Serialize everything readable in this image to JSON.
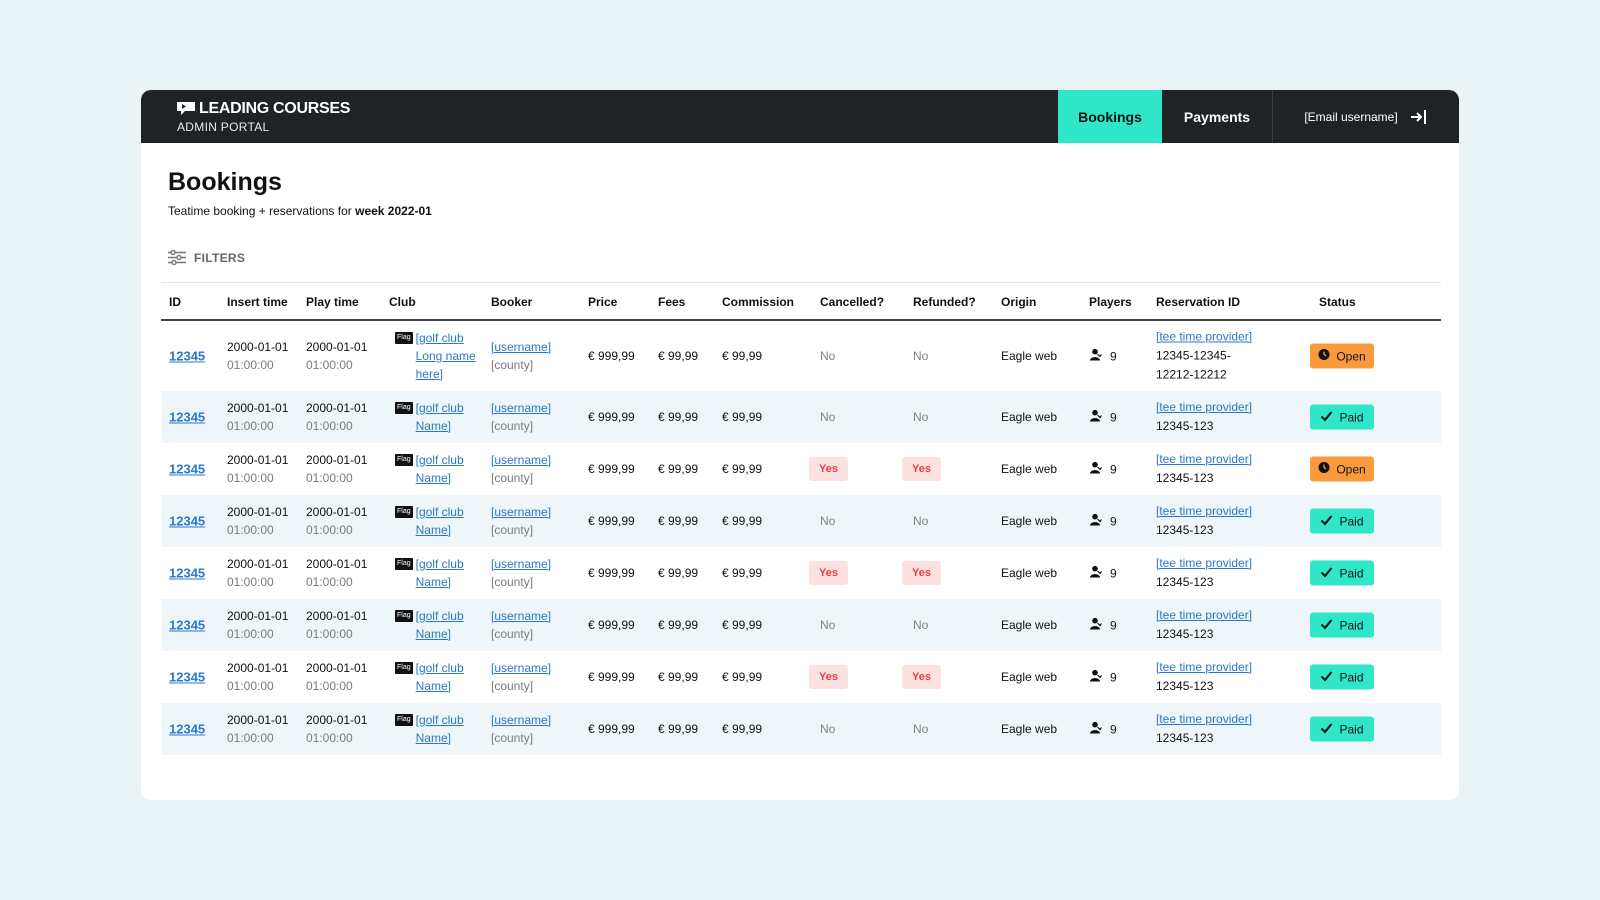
{
  "brand": {
    "name": "LEADING COURSES",
    "subtitle": "ADMIN PORTAL"
  },
  "nav": {
    "bookings": "Bookings",
    "payments": "Payments",
    "user": "[Email username]"
  },
  "page": {
    "title": "Bookings",
    "subtitle_prefix": "Teatime booking + reservations for ",
    "subtitle_week": "week 2022-01",
    "filters_label": "FILTERS"
  },
  "table": {
    "headers": [
      "ID",
      "Insert time",
      "Play time",
      "Club",
      "Booker",
      "Price",
      "Fees",
      "Commission",
      "Cancelled?",
      "Refunded?",
      "Origin",
      "Players",
      "Reservation ID",
      "Status"
    ],
    "rows": [
      {
        "id": "12345",
        "insert_date": "2000-01-01",
        "insert_time": "01:00:00",
        "play_date": "2000-01-01",
        "play_time": "01:00:00",
        "flag": "Flag",
        "club": "[golf club Long name here]",
        "booker": "[username]",
        "county": "[county]",
        "price": "€ 999,99",
        "fees": "€ 99,99",
        "commission": "€ 99,99",
        "cancelled": "No",
        "refunded": "No",
        "origin": "Eagle web",
        "players": "9",
        "provider": "[tee time provider]",
        "reservation": "12345-12345-12212-12212",
        "status": "Open"
      },
      {
        "id": "12345",
        "insert_date": "2000-01-01",
        "insert_time": "01:00:00",
        "play_date": "2000-01-01",
        "play_time": "01:00:00",
        "flag": "Flag",
        "club": "[golf club Name]",
        "booker": "[username]",
        "county": "[county]",
        "price": "€ 999,99",
        "fees": "€ 99,99",
        "commission": "€ 99,99",
        "cancelled": "No",
        "refunded": "No",
        "origin": "Eagle web",
        "players": "9",
        "provider": "[tee time provider]",
        "reservation": "12345-123",
        "status": "Paid"
      },
      {
        "id": "12345",
        "insert_date": "2000-01-01",
        "insert_time": "01:00:00",
        "play_date": "2000-01-01",
        "play_time": "01:00:00",
        "flag": "Flag",
        "club": "[golf club Name]",
        "booker": "[username]",
        "county": "[county]",
        "price": "€ 999,99",
        "fees": "€ 99,99",
        "commission": "€ 99,99",
        "cancelled": "Yes",
        "refunded": "Yes",
        "origin": "Eagle web",
        "players": "9",
        "provider": "[tee time provider]",
        "reservation": "12345-123",
        "status": "Open"
      },
      {
        "id": "12345",
        "insert_date": "2000-01-01",
        "insert_time": "01:00:00",
        "play_date": "2000-01-01",
        "play_time": "01:00:00",
        "flag": "Flag",
        "club": "[golf club Name]",
        "booker": "[username]",
        "county": "[county]",
        "price": "€ 999,99",
        "fees": "€ 99,99",
        "commission": "€ 99,99",
        "cancelled": "No",
        "refunded": "No",
        "origin": "Eagle web",
        "players": "9",
        "provider": "[tee time provider]",
        "reservation": "12345-123",
        "status": "Paid"
      },
      {
        "id": "12345",
        "insert_date": "2000-01-01",
        "insert_time": "01:00:00",
        "play_date": "2000-01-01",
        "play_time": "01:00:00",
        "flag": "Flag",
        "club": "[golf club Name]",
        "booker": "[username]",
        "county": "[county]",
        "price": "€ 999,99",
        "fees": "€ 99,99",
        "commission": "€ 99,99",
        "cancelled": "Yes",
        "refunded": "Yes",
        "origin": "Eagle web",
        "players": "9",
        "provider": "[tee time provider]",
        "reservation": "12345-123",
        "status": "Paid"
      },
      {
        "id": "12345",
        "insert_date": "2000-01-01",
        "insert_time": "01:00:00",
        "play_date": "2000-01-01",
        "play_time": "01:00:00",
        "flag": "Flag",
        "club": "[golf club Name]",
        "booker": "[username]",
        "county": "[county]",
        "price": "€ 999,99",
        "fees": "€ 99,99",
        "commission": "€ 99,99",
        "cancelled": "No",
        "refunded": "No",
        "origin": "Eagle web",
        "players": "9",
        "provider": "[tee time provider]",
        "reservation": "12345-123",
        "status": "Paid"
      },
      {
        "id": "12345",
        "insert_date": "2000-01-01",
        "insert_time": "01:00:00",
        "play_date": "2000-01-01",
        "play_time": "01:00:00",
        "flag": "Flag",
        "club": "[golf club Name]",
        "booker": "[username]",
        "county": "[county]",
        "price": "€ 999,99",
        "fees": "€ 99,99",
        "commission": "€ 99,99",
        "cancelled": "Yes",
        "refunded": "Yes",
        "origin": "Eagle web",
        "players": "9",
        "provider": "[tee time provider]",
        "reservation": "12345-123",
        "status": "Paid"
      },
      {
        "id": "12345",
        "insert_date": "2000-01-01",
        "insert_time": "01:00:00",
        "play_date": "2000-01-01",
        "play_time": "01:00:00",
        "flag": "Flag",
        "club": "[golf club Name]",
        "booker": "[username]",
        "county": "[county]",
        "price": "€ 999,99",
        "fees": "€ 99,99",
        "commission": "€ 99,99",
        "cancelled": "No",
        "refunded": "No",
        "origin": "Eagle web",
        "players": "9",
        "provider": "[tee time provider]",
        "reservation": "12345-123",
        "status": "Paid"
      }
    ]
  },
  "colors": {
    "accent": "#2fe6c8",
    "topbar": "#1f2326",
    "open": "#f99b3d",
    "yes_bg": "#fde0e0",
    "yes_text": "#e64040",
    "link": "#2a78c8",
    "row_alt": "#eef6f9"
  },
  "icons": {
    "brand": "flag-logo-icon",
    "logout": "logout-icon",
    "filters": "sliders-icon",
    "players": "person-icon",
    "open": "clock-icon",
    "paid": "check-icon"
  }
}
